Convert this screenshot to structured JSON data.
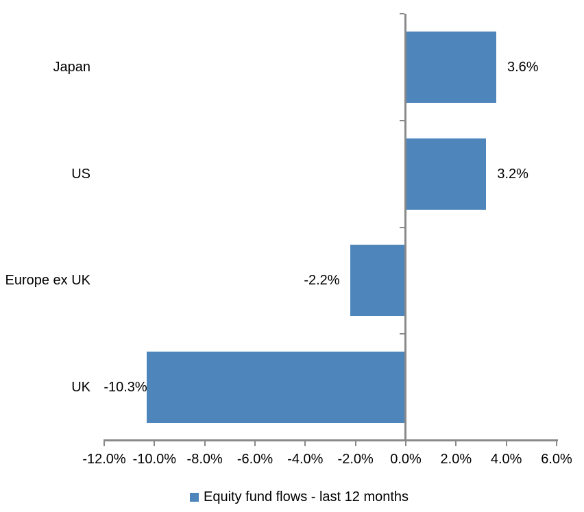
{
  "chart_data": {
    "type": "bar",
    "orientation": "horizontal",
    "title": "",
    "categories": [
      "Japan",
      "US",
      "Europe ex UK",
      "UK"
    ],
    "values": [
      3.6,
      3.2,
      -2.2,
      -10.3
    ],
    "data_labels": [
      "3.6%",
      "3.2%",
      "-2.2%",
      "-10.3%"
    ],
    "series_name": "Equity fund flows - last 12 months",
    "xlim": [
      -12,
      6
    ],
    "x_tick_interval": 2,
    "x_tick_labels": [
      "-12.0%",
      "-10.0%",
      "-8.0%",
      "-6.0%",
      "-4.0%",
      "-2.0%",
      "0.0%",
      "2.0%",
      "4.0%",
      "6.0%"
    ],
    "grid": false,
    "legend_position": "bottom",
    "bar_color": "#4E86BC",
    "axis_color": "#898989",
    "text_color": "#000000"
  }
}
